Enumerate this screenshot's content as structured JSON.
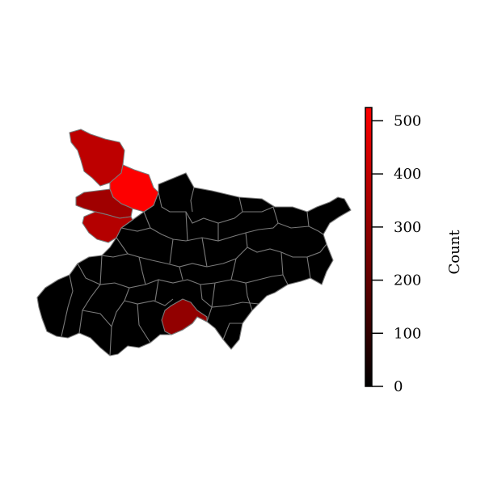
{
  "colorbar": {
    "label": "Count",
    "min": 0,
    "max": 525,
    "ticks": [
      {
        "value": 0,
        "label": "0"
      },
      {
        "value": 100,
        "label": "100"
      },
      {
        "value": 200,
        "label": "200"
      },
      {
        "value": 300,
        "label": "300"
      },
      {
        "value": 400,
        "label": "400"
      },
      {
        "value": 500,
        "label": "500"
      }
    ],
    "color_low": "#000000",
    "color_high": "#ff0000"
  },
  "map": {
    "border_color": "#7a7a7a",
    "highlighted_regions": [
      {
        "count": 520
      },
      {
        "count": 390
      },
      {
        "count": 370
      },
      {
        "count": 330
      },
      {
        "count": 300
      }
    ],
    "other_regions_count": 0
  }
}
